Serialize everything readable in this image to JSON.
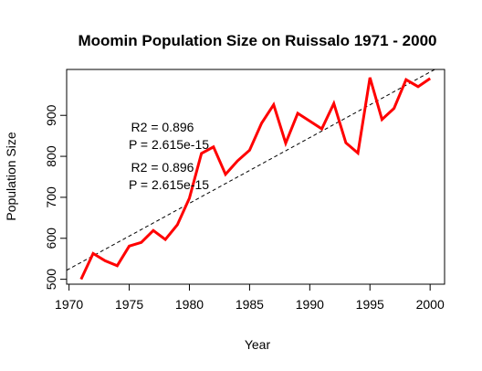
{
  "chart_data": {
    "type": "line",
    "title": "Moomin Population Size on Ruissalo 1971 - 2000",
    "xlabel": "Year",
    "ylabel": "Population Size",
    "xlim": [
      1969.8,
      2001.2
    ],
    "ylim": [
      488,
      1012
    ],
    "x_ticks": [
      1970,
      1975,
      1980,
      1985,
      1990,
      1995,
      2000
    ],
    "y_ticks": [
      500,
      600,
      700,
      800,
      900
    ],
    "grid": false,
    "series": [
      {
        "color": "#ff0000",
        "x": [
          1971,
          1972,
          1973,
          1974,
          1975,
          1976,
          1977,
          1978,
          1979,
          1980,
          1981,
          1982,
          1983,
          1984,
          1985,
          1986,
          1987,
          1988,
          1989,
          1990,
          1991,
          1992,
          1993,
          1994,
          1995,
          1996,
          1997,
          1998,
          1999,
          2000
        ],
        "values": [
          500,
          563,
          545,
          533,
          581,
          590,
          619,
          597,
          633,
          698,
          807,
          823,
          756,
          789,
          815,
          881,
          926,
          832,
          905,
          886,
          867,
          929,
          833,
          808,
          992,
          890,
          917,
          987,
          970,
          990
        ]
      }
    ],
    "trendline": {
      "style": "dashed",
      "color": "#000000",
      "points": [
        [
          1969.8,
          522
        ],
        [
          2001.2,
          1025
        ]
      ]
    },
    "annotations": [
      {
        "r2": "R2 = 0.896",
        "p": "P = 2.615e-15"
      },
      {
        "r2": "R2 = 0.896",
        "p": "P = 2.615e-15"
      }
    ]
  }
}
